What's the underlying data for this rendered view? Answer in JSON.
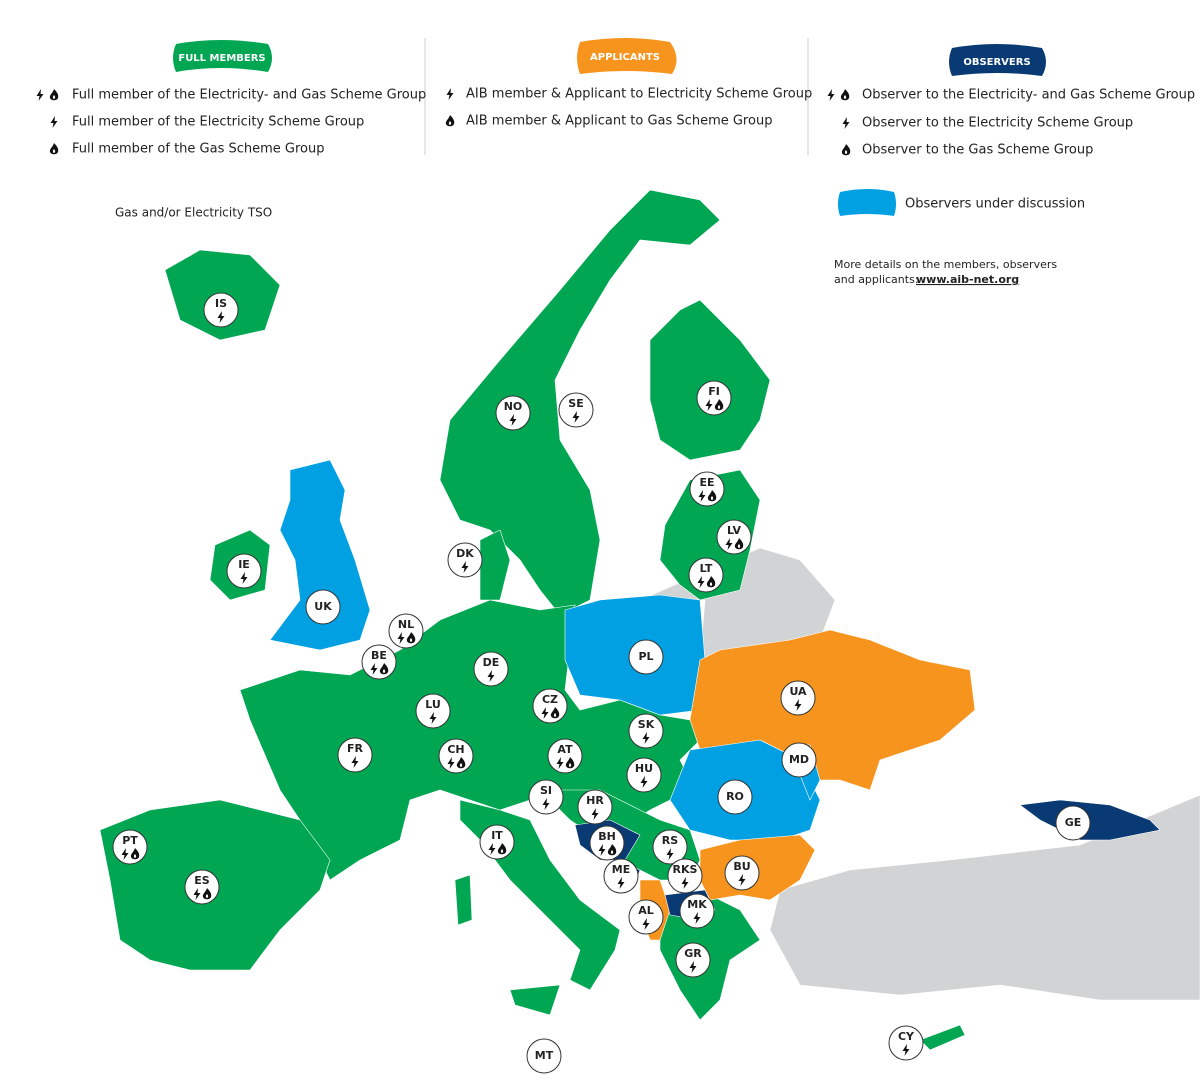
{
  "legend": [
    {
      "title": "FULL MEMBERS",
      "items": [
        "Full member of the Electricity- and Gas Scheme Group",
        "Full member of the Electricity Scheme Group",
        "Full member of the Gas Scheme Group"
      ]
    },
    {
      "title": "APPLICANTS",
      "items": [
        "AIB member & Applicant to Electricity Scheme Group",
        "AIB member & Applicant to Gas Scheme Group"
      ]
    },
    {
      "title": "OBSERVERS",
      "items": [
        "Observer to the Electricity- and Gas Scheme Group",
        "Observer to the Electricity Scheme Group",
        "Observer to the Gas Scheme Group"
      ]
    }
  ],
  "under_discussion": "Observers under discussion",
  "tso_note": "Gas and/or Electricity TSO",
  "more_details": {
    "line1": "More details on the members, observers",
    "line2": "and applicants:",
    "link": "www.aib-net.org"
  },
  "countries": [
    "IS",
    "NO",
    "SE",
    "FI",
    "EE",
    "LV",
    "LT",
    "DK",
    "IE",
    "UK",
    "NL",
    "BE",
    "DE",
    "PL",
    "CZ",
    "LU",
    "SK",
    "UA",
    "FR",
    "CH",
    "AT",
    "MD",
    "HU",
    "RO",
    "SI",
    "HR",
    "GE",
    "PT",
    "IT",
    "BH",
    "RS",
    "BU",
    "RKS",
    "ME",
    "ES",
    "AL",
    "MK",
    "GR",
    "CY",
    "MT"
  ]
}
